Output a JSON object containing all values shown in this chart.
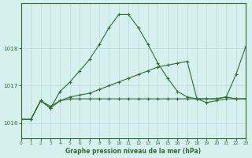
{
  "title": "Graphe pression niveau de la mer (hPa)",
  "background_color": "#d6f0f0",
  "grid_color": "#b8d8d8",
  "line_color": "#2d6e2d",
  "x_min": 0,
  "x_max": 23,
  "y_min": 1015.6,
  "y_max": 1019.2,
  "yticks": [
    1016,
    1017,
    1018
  ],
  "xticks": [
    0,
    1,
    2,
    3,
    4,
    5,
    6,
    7,
    8,
    9,
    10,
    11,
    12,
    13,
    14,
    15,
    16,
    17,
    18,
    19,
    20,
    21,
    22,
    23
  ],
  "series_peak": {
    "x": [
      0,
      1,
      2,
      3,
      4,
      5,
      6,
      7,
      8,
      9,
      10,
      11,
      12,
      13,
      14,
      15,
      16,
      17,
      18,
      19,
      20,
      21,
      22,
      23
    ],
    "y": [
      1016.1,
      1016.1,
      1016.6,
      1016.4,
      1016.85,
      1017.1,
      1017.4,
      1017.7,
      1018.1,
      1018.55,
      1018.9,
      1018.9,
      1018.55,
      1018.1,
      1017.6,
      1017.2,
      1016.85,
      1016.7,
      1016.65,
      1016.65,
      1016.65,
      1016.7,
      1016.65,
      1016.65
    ]
  },
  "series_diagonal": {
    "x": [
      0,
      1,
      2,
      3,
      4,
      5,
      6,
      7,
      8,
      9,
      10,
      11,
      12,
      13,
      14,
      15,
      16,
      17,
      18,
      19,
      20,
      21,
      22,
      23
    ],
    "y": [
      1016.1,
      1016.1,
      1016.6,
      1016.4,
      1016.6,
      1016.7,
      1016.75,
      1016.8,
      1016.9,
      1017.0,
      1017.1,
      1017.2,
      1017.3,
      1017.4,
      1017.5,
      1017.55,
      1017.6,
      1017.65,
      1016.65,
      1016.65,
      1016.65,
      1016.7,
      1017.3,
      1018.05
    ]
  },
  "series_flat": {
    "x": [
      0,
      1,
      2,
      3,
      4,
      5,
      6,
      7,
      8,
      9,
      10,
      11,
      12,
      13,
      14,
      15,
      16,
      17,
      18,
      19,
      20,
      21,
      22,
      23
    ],
    "y": [
      1016.1,
      1016.1,
      1016.6,
      1016.45,
      1016.6,
      1016.65,
      1016.65,
      1016.65,
      1016.65,
      1016.65,
      1016.65,
      1016.65,
      1016.65,
      1016.65,
      1016.65,
      1016.65,
      1016.65,
      1016.65,
      1016.65,
      1016.55,
      1016.6,
      1016.65,
      1016.65,
      1016.65
    ]
  }
}
